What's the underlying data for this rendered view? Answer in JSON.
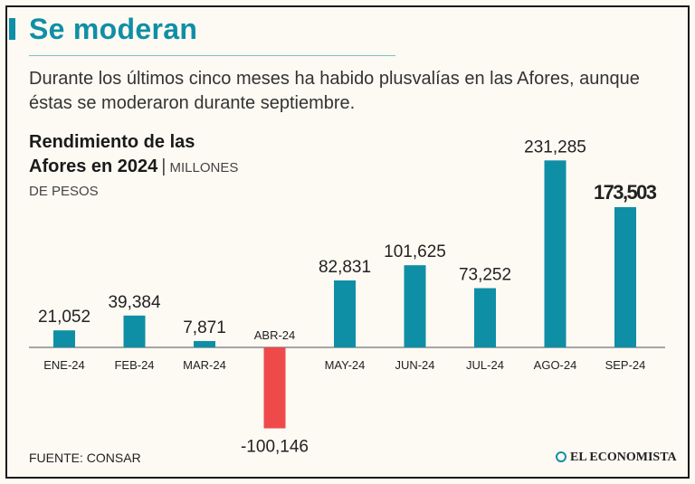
{
  "header": {
    "title": "Se moderan",
    "subtitle": "Durante los últimos cinco meses ha habido plusvalías en las Afores, aunque éstas se moderaron durante septiembre."
  },
  "chart_title": {
    "line1": "Rendimiento de las",
    "line2": "Afores en 2024",
    "separator": "|",
    "unit_part1": "MILLONES",
    "unit_part2": "DE PESOS"
  },
  "footer": {
    "source": "FUENTE: CONSAR",
    "brand": "EL ECONOMISTA"
  },
  "colors": {
    "positive": "#0f8fa6",
    "negative": "#ef4a4a",
    "title": "#0f8fa6"
  },
  "chart_data": {
    "type": "bar",
    "title": "Rendimiento de las Afores en 2024",
    "ylabel": "Millones de pesos",
    "categories": [
      "ENE-24",
      "FEB-24",
      "MAR-24",
      "ABR-24",
      "MAY-24",
      "JUN-24",
      "JUL-24",
      "AGO-24",
      "SEP-24"
    ],
    "values": [
      21052,
      39384,
      7871,
      -100146,
      82831,
      101625,
      73252,
      231285,
      173503
    ],
    "value_labels": [
      "21,052",
      "39,384",
      "7,871",
      "-100,146",
      "82,831",
      "101,625",
      "73,252",
      "231,285",
      "173,503"
    ],
    "highlight": "SEP-24",
    "ylim": [
      -110000,
      235000
    ],
    "grid": false
  }
}
